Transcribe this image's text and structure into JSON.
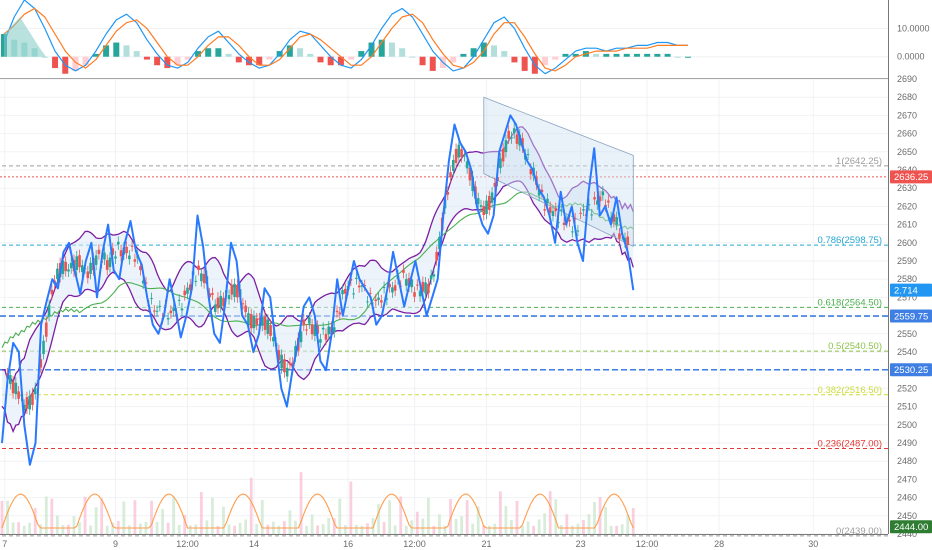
{
  "chart_data": [
    {
      "type": "line",
      "panel": "oscillator",
      "y_ticks": [
        "10.0000",
        "0.0000"
      ],
      "y_tick_values": [
        10,
        0
      ],
      "ylim": [
        -7.5,
        20
      ],
      "grid": true,
      "series": [
        {
          "color": "#2196f3",
          "values": [
            5,
            14,
            20,
            17,
            10,
            2,
            -3,
            -5,
            -3,
            2,
            8,
            13,
            15,
            12,
            6,
            1,
            -3,
            -4,
            -2,
            3,
            7,
            9,
            5,
            1,
            -2,
            -4,
            -3,
            1,
            6,
            9,
            8,
            4,
            0,
            -3,
            -4,
            -1,
            4,
            10,
            15,
            17,
            14,
            8,
            2,
            -2,
            -5,
            -4,
            0,
            6,
            12,
            14,
            10,
            3,
            -3,
            -6,
            -4,
            -1,
            2,
            3,
            3,
            2,
            3,
            3,
            4,
            4,
            5,
            5,
            4,
            4
          ]
        },
        {
          "color": "#ff7b22",
          "values": [
            8,
            11,
            15,
            17,
            14,
            8,
            2,
            -2,
            -4,
            -1,
            4,
            9,
            12,
            13,
            10,
            5,
            0,
            -3,
            -3,
            0,
            4,
            7,
            7,
            4,
            0,
            -3,
            -3,
            -1,
            3,
            7,
            8,
            6,
            3,
            0,
            -3,
            -3,
            0,
            5,
            10,
            14,
            15,
            12,
            6,
            1,
            -3,
            -4,
            -2,
            2,
            8,
            12,
            12,
            7,
            1,
            -4,
            -5,
            -3,
            0,
            1,
            2,
            2,
            2,
            3,
            3,
            3,
            4,
            4,
            4,
            4
          ]
        }
      ],
      "histogram_values": [
        8,
        6,
        5,
        3,
        0,
        -4,
        -6,
        -5,
        -3,
        1,
        4,
        5,
        4,
        2,
        -1,
        -3,
        -4,
        -3,
        -1,
        2,
        3,
        3,
        1,
        -2,
        -3,
        -3,
        -1,
        2,
        4,
        3,
        1,
        -2,
        -3,
        -3,
        -1,
        2,
        5,
        6,
        5,
        3,
        0,
        -3,
        -5,
        -4,
        -2,
        1,
        3,
        5,
        4,
        2,
        -2,
        -5,
        -6,
        -3,
        -1,
        1,
        1,
        2,
        1,
        1,
        1,
        1,
        1,
        1,
        1,
        1,
        0,
        0
      ],
      "histogram_colors": {
        "up_strong": "#26a69a",
        "up_weak": "#b2dfdb",
        "down_strong": "#ef5350",
        "down_weak": "#ffcdd2"
      }
    },
    {
      "type": "line",
      "panel": "price",
      "ylim": [
        2440,
        2690
      ],
      "y_ticks": [
        2440,
        2450,
        2460,
        2470,
        2480,
        2490,
        2500,
        2510,
        2520,
        2530,
        2540,
        2550,
        2560,
        2570,
        2580,
        2590,
        2600,
        2610,
        2620,
        2630,
        2640,
        2650,
        2660,
        2670,
        2680,
        2690
      ],
      "x_tick_labels": [
        "7",
        "9",
        "12:00",
        "14",
        "16",
        "12:00",
        "21",
        "23",
        "12:00",
        "28",
        "30"
      ],
      "x_tick_positions": [
        0.5,
        20.5,
        33.5,
        45.5,
        62.5,
        74.5,
        87.5,
        104.5,
        116.5,
        129.5,
        146.5
      ],
      "x_range": [
        0,
        160
      ],
      "grid": true,
      "series": [
        {
          "name": "",
          "color": "#2979ff",
          "x_start": 0,
          "values": [
            2490,
            2525,
            2545,
            2540,
            2500,
            2478,
            2490,
            2555,
            2568,
            2580,
            2575,
            2595,
            2600,
            2585,
            2572,
            2590,
            2600,
            2570,
            2595,
            2610,
            2585,
            2580,
            2600,
            2612,
            2595,
            2588,
            2570,
            2555,
            2550,
            2560,
            2580,
            2565,
            2548,
            2560,
            2575,
            2615,
            2598,
            2570,
            2550,
            2545,
            2568,
            2600,
            2590,
            2560,
            2555,
            2540,
            2550,
            2575,
            2570,
            2545,
            2520,
            2510,
            2530,
            2545,
            2565,
            2570,
            2560,
            2535,
            2530,
            2550,
            2580,
            2560,
            2575,
            2590,
            2580,
            2575,
            2570,
            2555,
            2560,
            2575,
            2595,
            2580,
            2565,
            2578,
            2590,
            2575,
            2560,
            2570,
            2580,
            2615,
            2645,
            2665,
            2655,
            2650,
            2640,
            2620,
            2610,
            2605,
            2615,
            2650,
            2660,
            2670,
            2665,
            2655,
            2645,
            2640,
            2630,
            2625,
            2615,
            2600,
            2628,
            2610,
            2620,
            2600,
            2590,
            2628,
            2652,
            2615,
            2620,
            2610,
            2625,
            2605,
            2595,
            2574
          ]
        },
        {
          "name": "",
          "color": "#7b1fa2",
          "role": "upper-band"
        },
        {
          "name": "",
          "color": "#7b1fa2",
          "role": "lower-band"
        },
        {
          "name": "",
          "color": "#4caf50",
          "role": "moving-average"
        }
      ],
      "fibonacci": [
        {
          "label": "1(2642.25)",
          "value": 2642.25,
          "color": "#9e9e9e"
        },
        {
          "label": "0.786(2598.75)",
          "value": 2598.75,
          "color": "#26a6d1"
        },
        {
          "label": "0.618(2564.50)",
          "value": 2564.5,
          "color": "#4caf50"
        },
        {
          "label": "0.5(2540.50)",
          "value": 2540.5,
          "color": "#8bc34a"
        },
        {
          "label": "0.382(2516.50)",
          "value": 2516.5,
          "color": "#cddc39"
        },
        {
          "label": "0.236(2487.00)",
          "value": 2487.0,
          "color": "#e53935"
        },
        {
          "label": "0(2439.00)",
          "value": 2439.0,
          "color": "#9e9e9e"
        }
      ],
      "horizontal_levels": [
        {
          "value": 2559.75,
          "color": "#3f7fe3"
        },
        {
          "value": 2530.25,
          "color": "#3f7fe3"
        }
      ],
      "price_tags": [
        {
          "label": "2636.25",
          "value": 2636.25,
          "bg": "#ef5350"
        },
        {
          "label": "2.714",
          "value": 2574,
          "bg": "#2196f3"
        },
        {
          "label": "2559.75",
          "value": 2559.75,
          "bg": "#3f7fe3"
        },
        {
          "label": "2530.25",
          "value": 2530.25,
          "bg": "#3f7fe3"
        },
        {
          "label": "2444.00",
          "value": 2444.0,
          "bg": "#2e7d32"
        }
      ]
    }
  ]
}
